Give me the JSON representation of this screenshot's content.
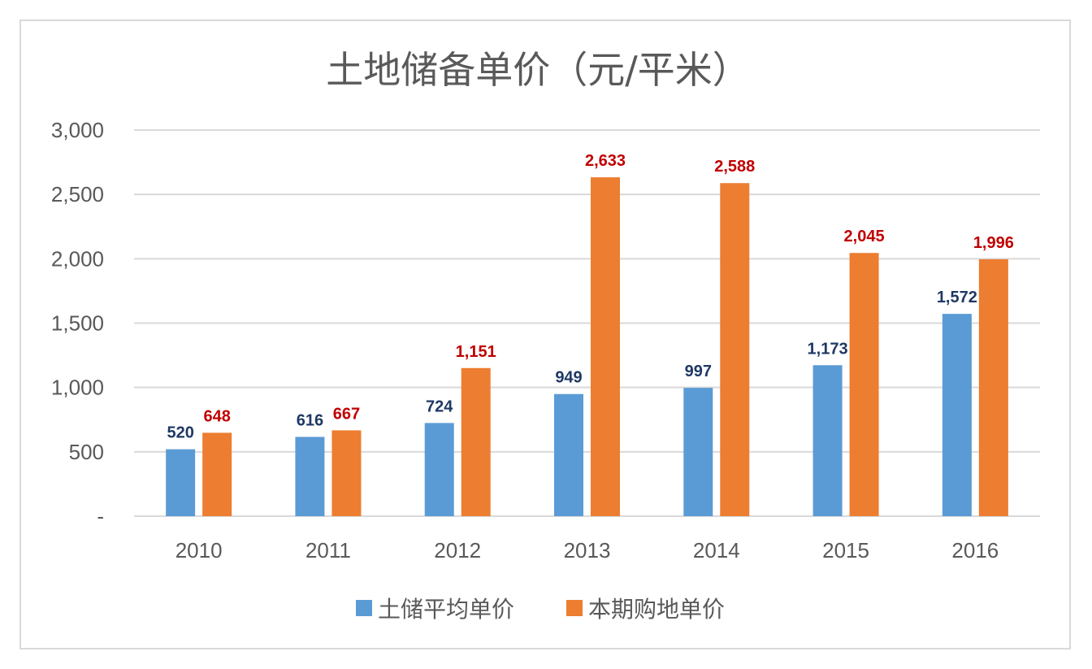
{
  "chart_data": {
    "type": "bar",
    "title": "土地储备单价（元/平米）",
    "categories": [
      "2010",
      "2011",
      "2012",
      "2013",
      "2014",
      "2015",
      "2016"
    ],
    "series": [
      {
        "name": "土储平均单价",
        "color": "#5b9bd5",
        "label_color": "#1f3864",
        "values": [
          520,
          616,
          724,
          949,
          997,
          1173,
          1572
        ],
        "labels": [
          "520",
          "616",
          "724",
          "949",
          "997",
          "1,173",
          "1,572"
        ]
      },
      {
        "name": "本期购地单价",
        "color": "#ed7d31",
        "label_color": "#c00000",
        "values": [
          648,
          667,
          1151,
          2633,
          2588,
          2045,
          1996
        ],
        "labels": [
          "648",
          "667",
          "1,151",
          "2,633",
          "2,588",
          "2,045",
          "1,996"
        ]
      }
    ],
    "ylim": [
      0,
      3000
    ],
    "yticks": [
      0,
      500,
      1000,
      1500,
      2000,
      2500,
      3000
    ],
    "ytick_labels": [
      "-",
      "500",
      "1,000",
      "1,500",
      "2,000",
      "2,500",
      "3,000"
    ],
    "grid": true,
    "legend_position": "bottom"
  }
}
